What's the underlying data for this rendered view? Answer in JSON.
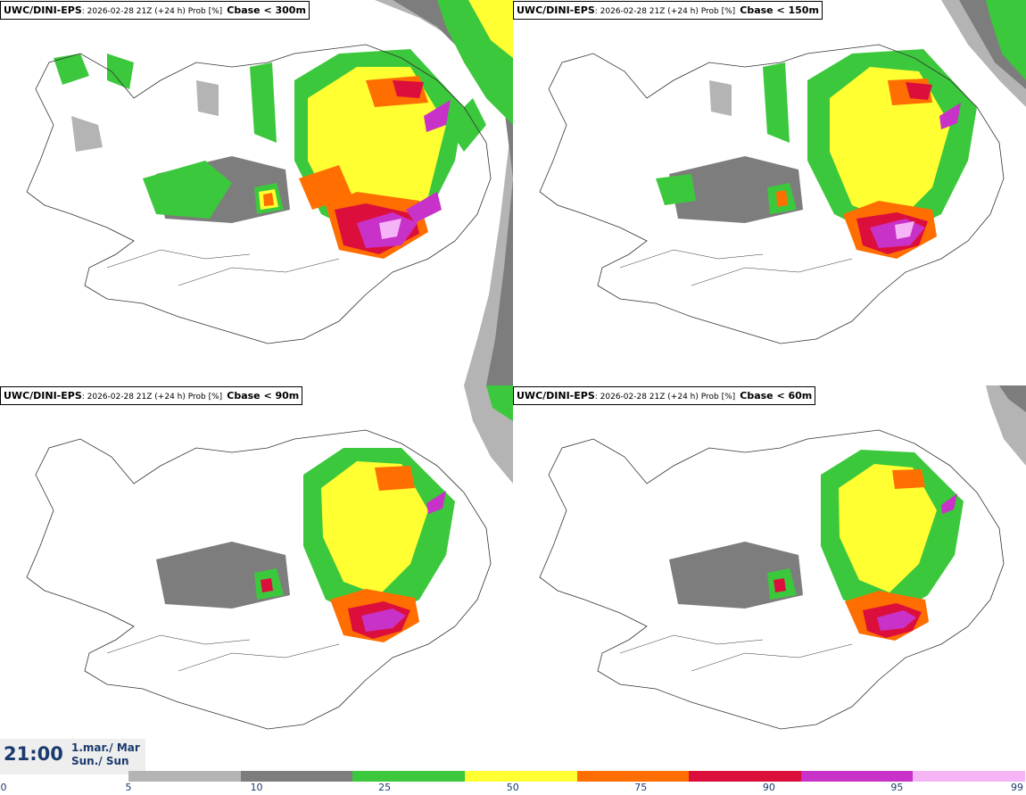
{
  "panels": [
    {
      "model": "UWC/DINI-EPS",
      "run": ": 2026-02-28 21Z (+24 h) Prob [%]",
      "threshold": "Cbase < 300m"
    },
    {
      "model": "UWC/DINI-EPS",
      "run": ": 2026-02-28 21Z (+24 h) Prob [%]",
      "threshold": "Cbase < 150m"
    },
    {
      "model": "UWC/DINI-EPS",
      "run": ": 2026-02-28 21Z (+24 h) Prob [%]",
      "threshold": "Cbase < 90m"
    },
    {
      "model": "UWC/DINI-EPS",
      "run": ": 2026-02-28 21Z (+24 h) Prob [%]",
      "threshold": "Cbase < 60m"
    }
  ],
  "valid_time": {
    "time": "21:00",
    "date_line": "1.mar./ Mar",
    "day_line": "Sun./ Sun"
  },
  "legend": {
    "ticks": [
      "0",
      "5",
      "10",
      "25",
      "50",
      "75",
      "90",
      "95",
      "99"
    ],
    "colors": [
      "#b4b4b4",
      "#7d7d7d",
      "#3cc83c",
      "#ffff32",
      "#ff6e00",
      "#dc0f3c",
      "#c832c8",
      "#f5b4f5"
    ]
  },
  "colors": {
    "p5": "#b4b4b4",
    "p10": "#7d7d7d",
    "p25": "#3cc83c",
    "p50": "#ffff32",
    "p75": "#ff6e00",
    "p90": "#dc0f3c",
    "p95": "#c832c8",
    "p99": "#f5b4f5",
    "coast": "#333333",
    "text_blue": "#1a3a6e"
  }
}
